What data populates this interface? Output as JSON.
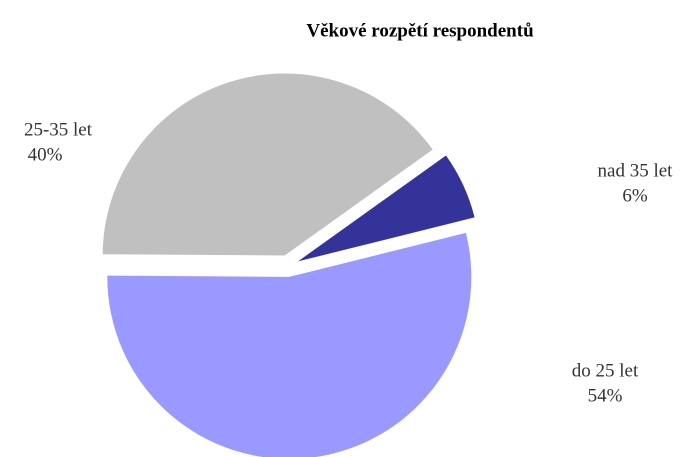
{
  "chart_data": {
    "type": "pie",
    "title": "Věkové rozpětí respondentů",
    "categories": [
      "do 25 let",
      "25-35 let",
      "nad 35 let"
    ],
    "values": [
      54,
      40,
      6
    ],
    "value_labels": [
      "54%",
      "40%",
      "6%"
    ],
    "colors": [
      "#9999ff",
      "#c0c0c0",
      "#333399"
    ]
  }
}
